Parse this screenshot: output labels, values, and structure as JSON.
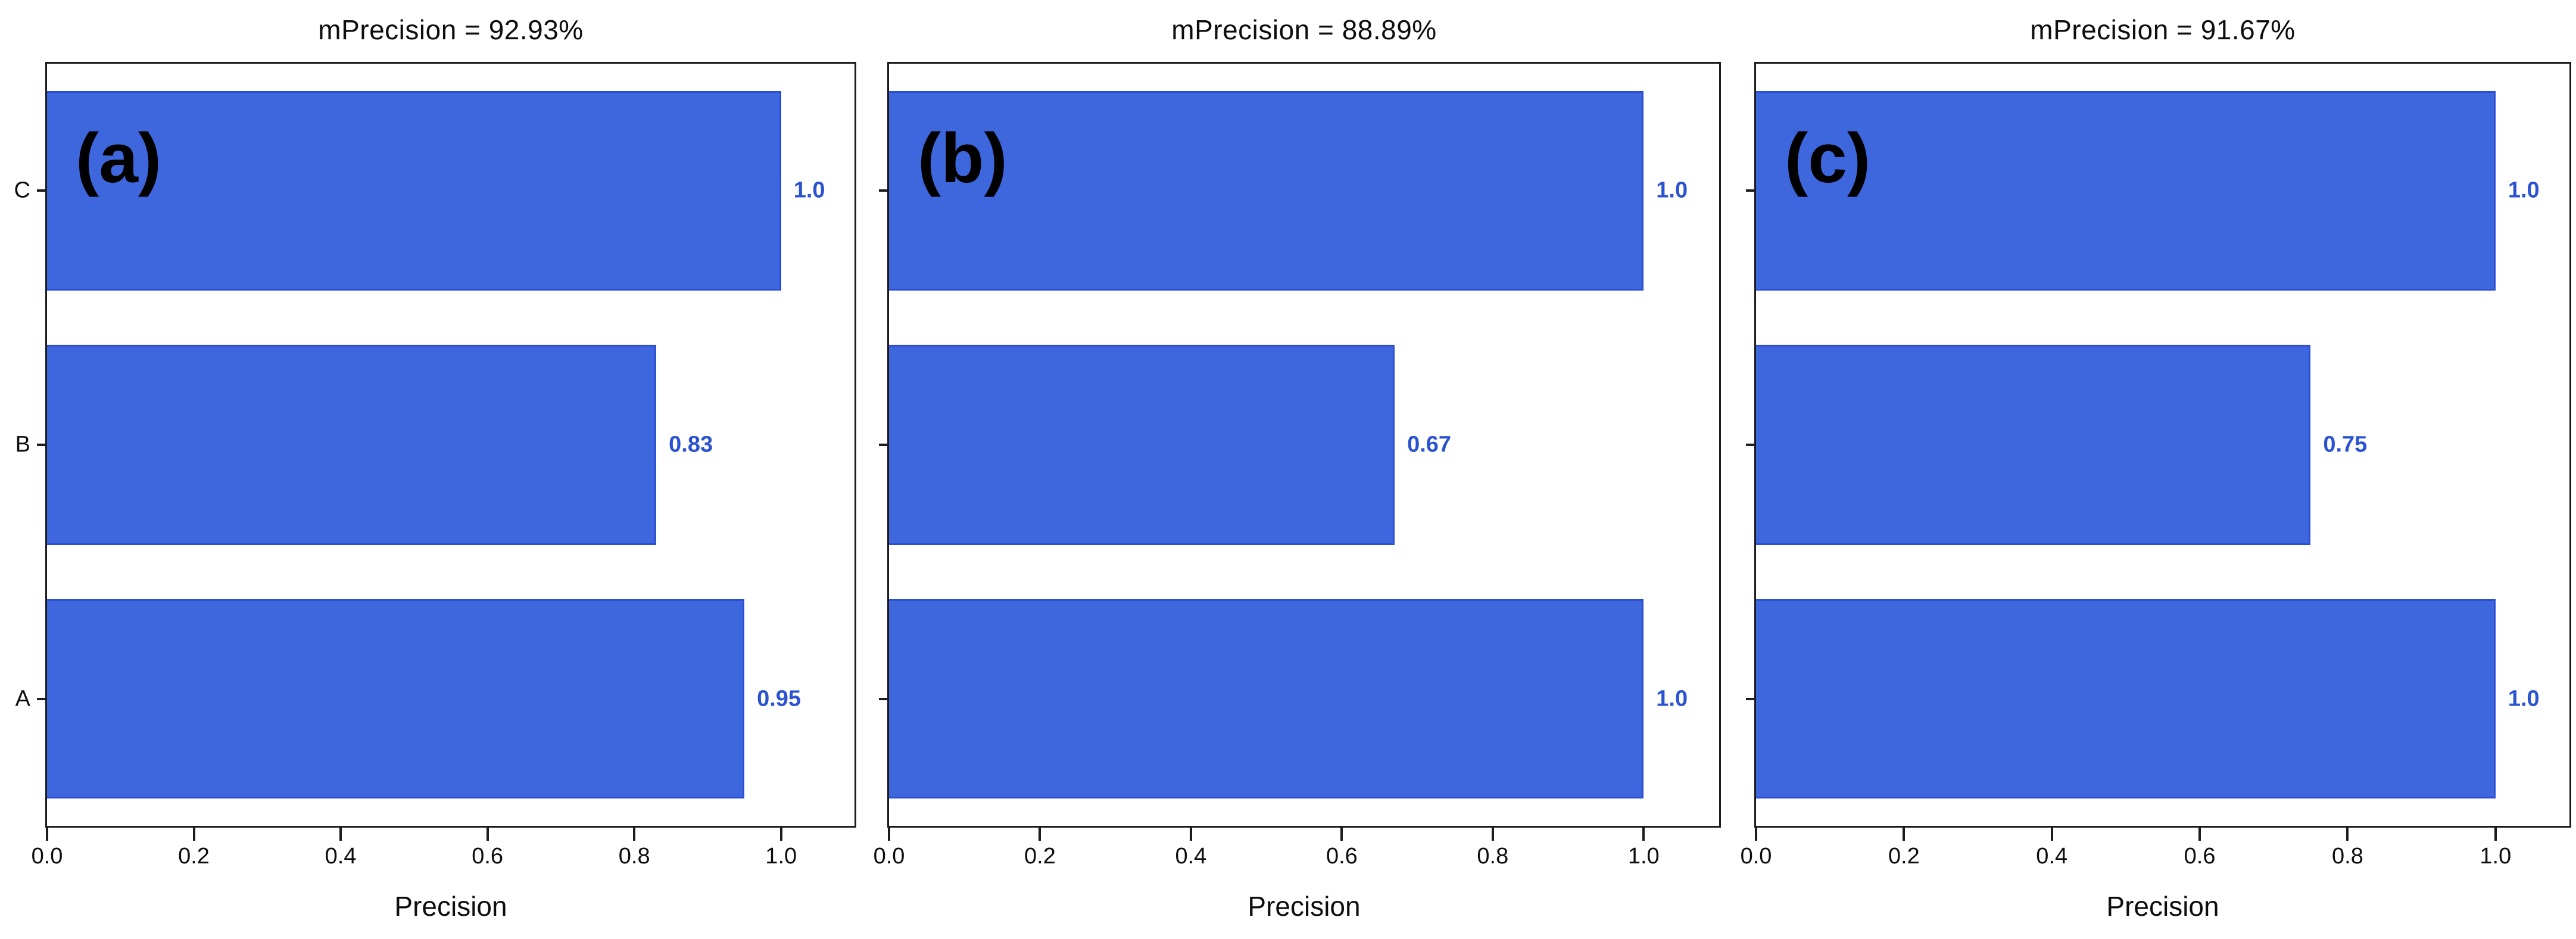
{
  "figure": {
    "description": "Three horizontal bar charts of per-class Precision",
    "background_color": "#ffffff",
    "frame_color": "#1c1c1c",
    "text_color": "#0d0d0d"
  },
  "chart_data": [
    {
      "type": "bar",
      "orientation": "horizontal",
      "panel_label": "(a)",
      "title": "mPrecision = 92.93%",
      "categories": [
        "C",
        "B",
        "A"
      ],
      "values": [
        1.0,
        0.83,
        0.95
      ],
      "value_labels": [
        "1.0",
        "0.83",
        "0.95"
      ],
      "show_category_labels": true,
      "xlabel": "Precision",
      "x_ticks": [
        "0.0",
        "0.2",
        "0.4",
        "0.6",
        "0.8",
        "1.0"
      ],
      "x_tick_values": [
        0,
        0.2,
        0.4,
        0.6,
        0.8,
        1.0
      ],
      "xlim": [
        0,
        1.1
      ],
      "grid": false,
      "legend": false,
      "bar_color": "#3e66dd",
      "bar_edge_color": "#2b50d5",
      "value_color": "#2b53d0"
    },
    {
      "type": "bar",
      "orientation": "horizontal",
      "panel_label": "(b)",
      "title": "mPrecision = 88.89%",
      "categories": [
        "C",
        "B",
        "A"
      ],
      "values": [
        1.0,
        0.67,
        1.0
      ],
      "value_labels": [
        "1.0",
        "0.67",
        "1.0"
      ],
      "show_category_labels": false,
      "xlabel": "Precision",
      "x_ticks": [
        "0.0",
        "0.2",
        "0.4",
        "0.6",
        "0.8",
        "1.0"
      ],
      "x_tick_values": [
        0,
        0.2,
        0.4,
        0.6,
        0.8,
        1.0
      ],
      "xlim": [
        0,
        1.1
      ],
      "grid": false,
      "legend": false,
      "bar_color": "#3e66dd",
      "bar_edge_color": "#2b50d5",
      "value_color": "#2b53d0"
    },
    {
      "type": "bar",
      "orientation": "horizontal",
      "panel_label": "(c)",
      "title": "mPrecision = 91.67%",
      "categories": [
        "C",
        "B",
        "A"
      ],
      "values": [
        1.0,
        0.75,
        1.0
      ],
      "value_labels": [
        "1.0",
        "0.75",
        "1.0"
      ],
      "show_category_labels": false,
      "xlabel": "Precision",
      "x_ticks": [
        "0.0",
        "0.2",
        "0.4",
        "0.6",
        "0.8",
        "1.0"
      ],
      "x_tick_values": [
        0,
        0.2,
        0.4,
        0.6,
        0.8,
        1.0
      ],
      "xlim": [
        0,
        1.1
      ],
      "grid": false,
      "legend": false,
      "bar_color": "#3e66dd",
      "bar_edge_color": "#2b50d5",
      "value_color": "#2b53d0"
    }
  ]
}
